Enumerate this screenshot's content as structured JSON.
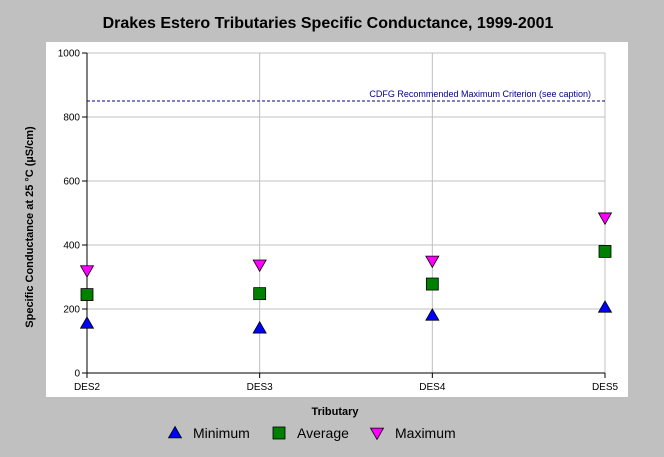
{
  "chart_data": {
    "type": "scatter",
    "title": "Drakes Estero Tributaries Specific Conductance, 1999-2001",
    "xlabel": "Tributary",
    "ylabel": "Specific Conductance at 25 °C (µS/cm)",
    "categories": [
      "DES2",
      "DES3",
      "DES4",
      "DES5"
    ],
    "ylim": [
      0,
      1000
    ],
    "yticks": [
      0,
      200,
      400,
      600,
      800,
      1000
    ],
    "grid": true,
    "legend_position": "bottom",
    "series": [
      {
        "name": "Minimum",
        "marker": "triangle-up",
        "color": "#0000ff",
        "values": [
          155,
          140,
          180,
          205
        ]
      },
      {
        "name": "Average",
        "marker": "square",
        "color": "#008000",
        "values": [
          245,
          248,
          278,
          380
        ]
      },
      {
        "name": "Maximum",
        "marker": "triangle-down",
        "color": "#ff00ff",
        "values": [
          320,
          338,
          350,
          485
        ]
      }
    ],
    "reference_line": {
      "value": 850,
      "label": "CDFG Recommended Maximum Criterion (see caption)",
      "color": "#00008b",
      "style": "dashed"
    }
  },
  "colors": {
    "background": "#c0c0c0",
    "plot_background": "#ffffff",
    "grid": "#c0c0c0"
  }
}
